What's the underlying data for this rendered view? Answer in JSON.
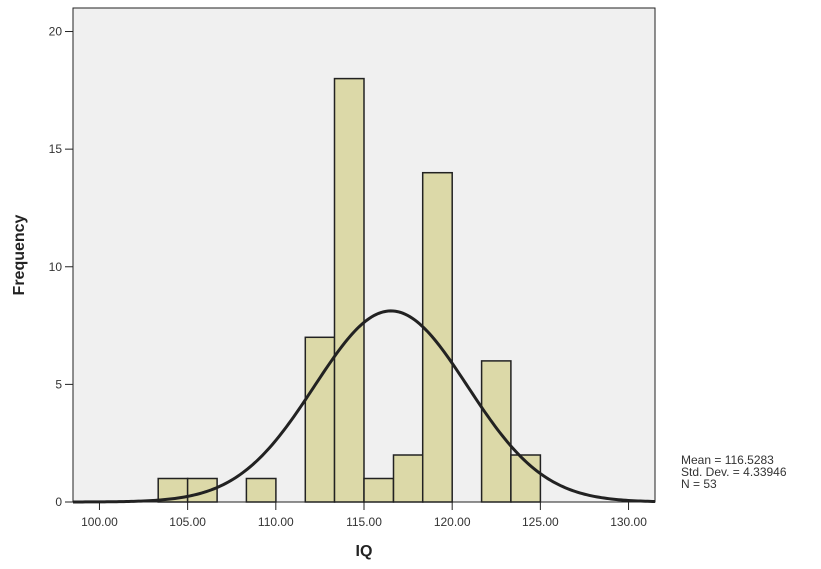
{
  "chart_data": {
    "type": "bar",
    "title": "",
    "xlabel": "IQ",
    "ylabel": "Frequency",
    "xlim": [
      98.5,
      131.5
    ],
    "ylim": [
      0,
      21
    ],
    "x_ticks": [
      100,
      105,
      110,
      115,
      120,
      125,
      130
    ],
    "x_tick_labels": [
      "100.00",
      "105.00",
      "110.00",
      "115.00",
      "120.00",
      "125.00",
      "130.00"
    ],
    "y_ticks": [
      0,
      5,
      10,
      15,
      20
    ],
    "y_tick_labels": [
      "0",
      "5",
      "10",
      "15",
      "20"
    ],
    "bin_width": 1.667,
    "bins": [
      {
        "start": 103.33,
        "end": 105.0,
        "count": 1
      },
      {
        "start": 105.0,
        "end": 106.67,
        "count": 1
      },
      {
        "start": 108.33,
        "end": 110.0,
        "count": 1
      },
      {
        "start": 111.67,
        "end": 113.33,
        "count": 7
      },
      {
        "start": 113.33,
        "end": 115.0,
        "count": 18
      },
      {
        "start": 115.0,
        "end": 116.67,
        "count": 1
      },
      {
        "start": 116.67,
        "end": 118.33,
        "count": 2
      },
      {
        "start": 118.33,
        "end": 120.0,
        "count": 14
      },
      {
        "start": 121.67,
        "end": 123.33,
        "count": 6
      },
      {
        "start": 123.33,
        "end": 125.0,
        "count": 2
      }
    ],
    "normal_curve": {
      "mean": 116.5283,
      "std_dev": 4.33946,
      "n": 53
    },
    "grid": false,
    "colors": {
      "bar_fill": "#dcd9a8",
      "bar_stroke": "#222222",
      "curve": "#222222",
      "plot_bg": "#f0f0f0"
    }
  },
  "stats": {
    "mean": "Mean = 116.5283",
    "std_dev": "Std. Dev. = 4.33946",
    "n": "N = 53"
  }
}
